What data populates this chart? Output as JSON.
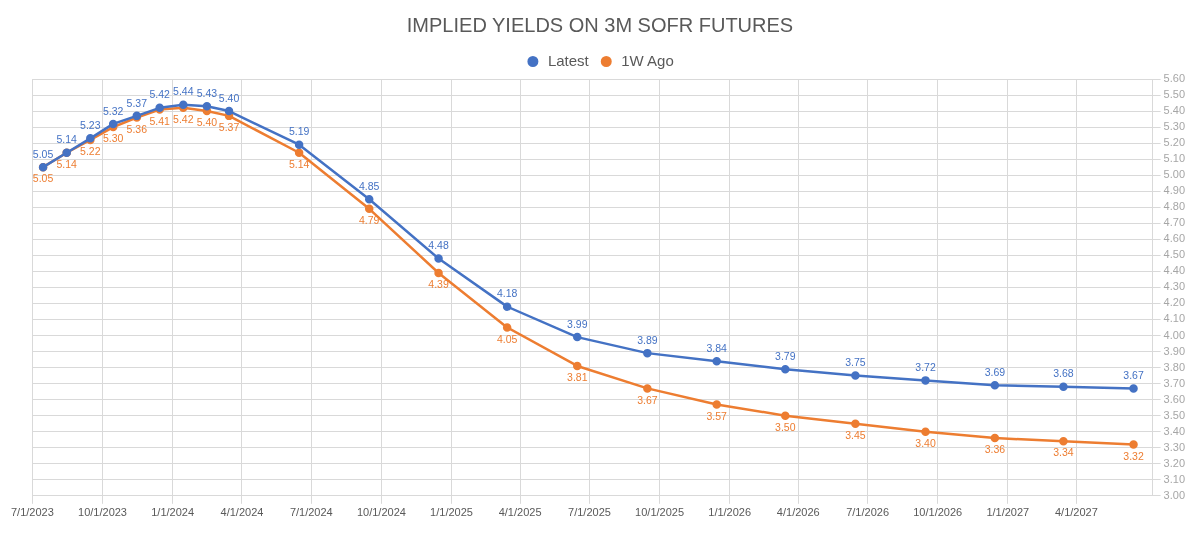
{
  "chart_data": {
    "type": "line",
    "title": "IMPLIED YIELDS ON 3M SOFR FUTURES",
    "x": [
      "2023-07-15",
      "2023-08-15",
      "2023-09-15",
      "2023-10-15",
      "2023-11-15",
      "2023-12-15",
      "2024-01-15",
      "2024-02-15",
      "2024-03-15",
      "2024-06-15",
      "2024-09-15",
      "2024-12-15",
      "2025-03-15",
      "2025-06-15",
      "2025-09-15",
      "2025-12-15",
      "2026-03-15",
      "2026-06-15",
      "2026-09-15",
      "2026-12-15",
      "2027-03-15",
      "2027-06-15"
    ],
    "series": [
      {
        "name": "Latest",
        "color": "#4472c4",
        "values": [
          5.05,
          5.14,
          5.23,
          5.32,
          5.37,
          5.42,
          5.44,
          5.43,
          5.4,
          5.19,
          4.85,
          4.48,
          4.18,
          3.99,
          3.89,
          3.84,
          3.79,
          3.75,
          3.72,
          3.69,
          3.68,
          3.67
        ],
        "value_labels": [
          "5.05",
          "5.14",
          "5.23",
          "5.32",
          "5.37",
          "5.42",
          "5.44",
          "5.43",
          "5.40",
          "5.19",
          "4.85",
          "4.48",
          "4.18",
          "3.99",
          "3.89",
          "3.84",
          "3.79",
          "3.75",
          "3.72",
          "3.69",
          "3.68",
          "3.67"
        ]
      },
      {
        "name": "1W Ago",
        "color": "#ed7d31",
        "values": [
          5.05,
          5.14,
          5.22,
          5.3,
          5.36,
          5.41,
          5.42,
          5.4,
          5.37,
          5.14,
          4.79,
          4.39,
          4.05,
          3.81,
          3.67,
          3.57,
          3.5,
          3.45,
          3.4,
          3.36,
          3.34,
          3.32
        ],
        "value_labels": [
          "5.05",
          "5.14",
          "5.22",
          "5.30",
          "5.36",
          "5.41",
          "5.42",
          "5.40",
          "5.37",
          "5.14",
          "4.79",
          "4.39",
          "4.05",
          "3.81",
          "3.67",
          "3.57",
          "3.50",
          "3.45",
          "3.40",
          "3.36",
          "3.34",
          "3.32"
        ]
      }
    ],
    "xlim": [
      "2023-07-01",
      "2027-07-10"
    ],
    "xticks": [
      {
        "value": "2023-07-01",
        "label": "7/1/2023"
      },
      {
        "value": "2023-10-01",
        "label": "10/1/2023"
      },
      {
        "value": "2024-01-01",
        "label": "1/1/2024"
      },
      {
        "value": "2024-04-01",
        "label": "4/1/2024"
      },
      {
        "value": "2024-07-01",
        "label": "7/1/2024"
      },
      {
        "value": "2024-10-01",
        "label": "10/1/2024"
      },
      {
        "value": "2025-01-01",
        "label": "1/1/2025"
      },
      {
        "value": "2025-04-01",
        "label": "4/1/2025"
      },
      {
        "value": "2025-07-01",
        "label": "7/1/2025"
      },
      {
        "value": "2025-10-01",
        "label": "10/1/2025"
      },
      {
        "value": "2026-01-01",
        "label": "1/1/2026"
      },
      {
        "value": "2026-04-01",
        "label": "4/1/2026"
      },
      {
        "value": "2026-07-01",
        "label": "7/1/2026"
      },
      {
        "value": "2026-10-01",
        "label": "10/1/2026"
      },
      {
        "value": "2027-01-01",
        "label": "1/1/2027"
      },
      {
        "value": "2027-04-01",
        "label": "4/1/2027"
      }
    ],
    "ylim": [
      3.0,
      5.6
    ],
    "yticks": [
      {
        "value": 3.0,
        "label": "3.00"
      },
      {
        "value": 3.1,
        "label": "3.10"
      },
      {
        "value": 3.2,
        "label": "3.20"
      },
      {
        "value": 3.3,
        "label": "3.30"
      },
      {
        "value": 3.4,
        "label": "3.40"
      },
      {
        "value": 3.5,
        "label": "3.50"
      },
      {
        "value": 3.6,
        "label": "3.60"
      },
      {
        "value": 3.7,
        "label": "3.70"
      },
      {
        "value": 3.8,
        "label": "3.80"
      },
      {
        "value": 3.9,
        "label": "3.90"
      },
      {
        "value": 4.0,
        "label": "4.00"
      },
      {
        "value": 4.1,
        "label": "4.10"
      },
      {
        "value": 4.2,
        "label": "4.20"
      },
      {
        "value": 4.3,
        "label": "4.30"
      },
      {
        "value": 4.4,
        "label": "4.40"
      },
      {
        "value": 4.5,
        "label": "4.50"
      },
      {
        "value": 4.6,
        "label": "4.60"
      },
      {
        "value": 4.7,
        "label": "4.70"
      },
      {
        "value": 4.8,
        "label": "4.80"
      },
      {
        "value": 4.9,
        "label": "4.90"
      },
      {
        "value": 5.0,
        "label": "5.00"
      },
      {
        "value": 5.1,
        "label": "5.10"
      },
      {
        "value": 5.2,
        "label": "5.20"
      },
      {
        "value": 5.3,
        "label": "5.30"
      },
      {
        "value": 5.4,
        "label": "5.40"
      },
      {
        "value": 5.5,
        "label": "5.50"
      },
      {
        "value": 5.6,
        "label": "5.60"
      }
    ],
    "grid": true,
    "legend": "top",
    "marker": "circle",
    "line_style": "solid"
  }
}
